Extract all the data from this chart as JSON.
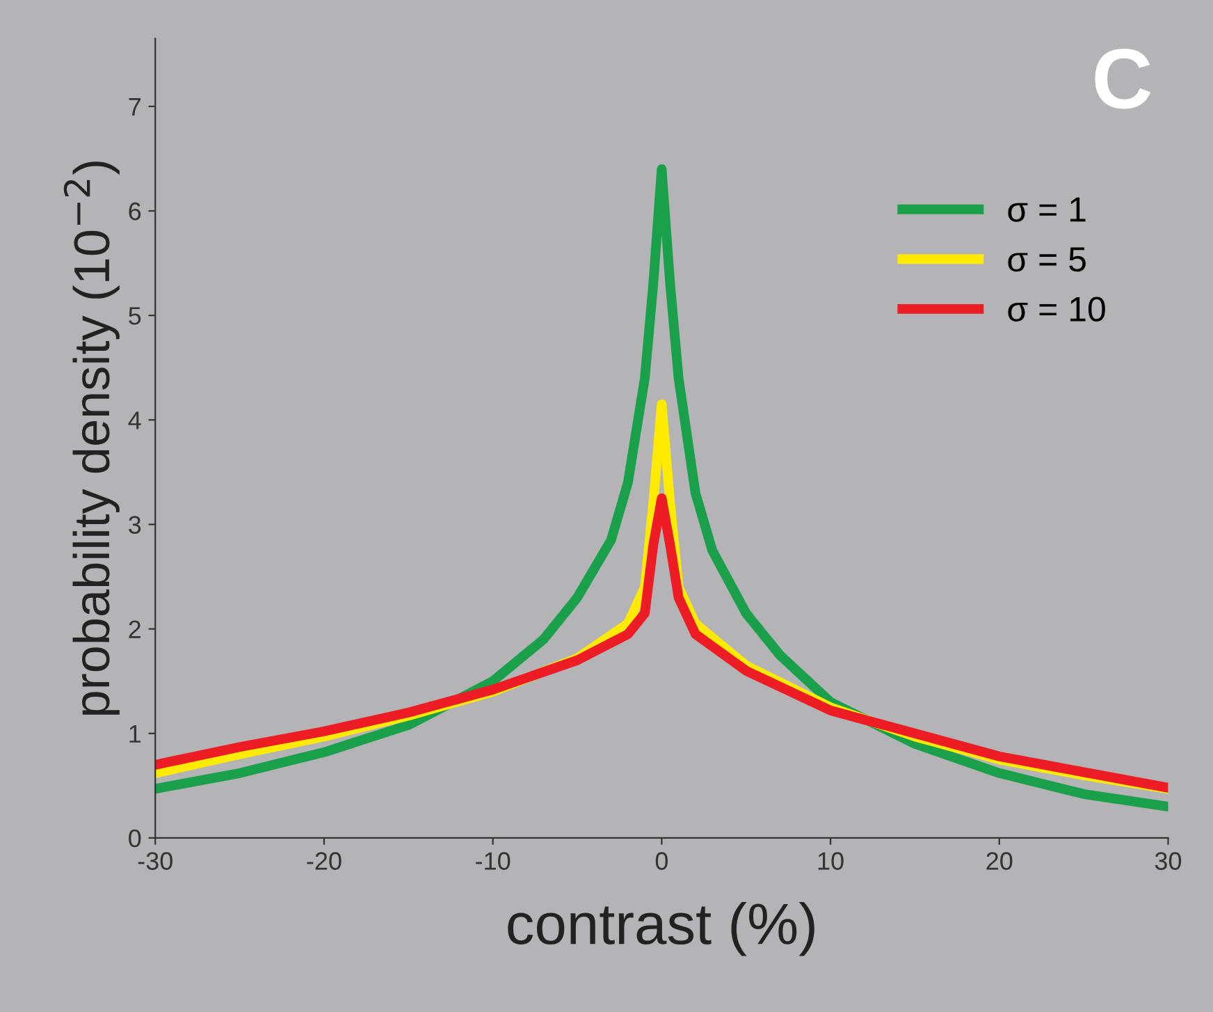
{
  "chart_data": {
    "type": "line",
    "xlabel": "contrast (%)",
    "ylabel": "probability density (10$^{−2}$)",
    "annotations": [
      "C"
    ],
    "xlim": [
      -30,
      30
    ],
    "ylim": [
      0,
      7.65
    ],
    "xticks": [
      -30,
      -20,
      -10,
      0,
      10,
      20,
      30
    ],
    "yticks": [
      0,
      1,
      2,
      3,
      4,
      5,
      6,
      7
    ],
    "grid": false,
    "legend": "right",
    "line_style": "solid",
    "marker": "none",
    "series": [
      {
        "name": "σ = 1",
        "color": "#1aa04a",
        "x": [
          -30,
          -25,
          -20,
          -15,
          -10,
          -7,
          -5,
          -3,
          -2,
          -1,
          -0.5,
          0,
          0.5,
          1,
          2,
          3,
          5,
          7,
          10,
          15,
          20,
          25,
          30
        ],
        "values": [
          0.47,
          0.62,
          0.82,
          1.08,
          1.5,
          1.9,
          2.3,
          2.85,
          3.4,
          4.4,
          5.3,
          6.4,
          5.3,
          4.4,
          3.3,
          2.75,
          2.15,
          1.75,
          1.3,
          0.9,
          0.62,
          0.42,
          0.3
        ]
      },
      {
        "name": "σ = 5",
        "color": "#ffea00",
        "x": [
          -30,
          -25,
          -20,
          -15,
          -10,
          -5,
          -2,
          -1,
          -0.5,
          0,
          0.5,
          1,
          2,
          5,
          10,
          15,
          20,
          25,
          30
        ],
        "values": [
          0.62,
          0.8,
          0.97,
          1.17,
          1.4,
          1.72,
          2.05,
          2.4,
          3.2,
          4.15,
          3.2,
          2.4,
          2.05,
          1.65,
          1.25,
          0.97,
          0.75,
          0.6,
          0.47
        ]
      },
      {
        "name": "σ = 10",
        "color": "#ee1c24",
        "x": [
          -30,
          -25,
          -20,
          -15,
          -10,
          -5,
          -2,
          -1,
          -0.5,
          0,
          0.5,
          1,
          2,
          5,
          10,
          15,
          20,
          25,
          30
        ],
        "values": [
          0.7,
          0.87,
          1.02,
          1.2,
          1.42,
          1.7,
          1.95,
          2.15,
          2.8,
          3.25,
          2.8,
          2.3,
          1.95,
          1.6,
          1.22,
          1.0,
          0.78,
          0.63,
          0.48
        ]
      }
    ]
  }
}
